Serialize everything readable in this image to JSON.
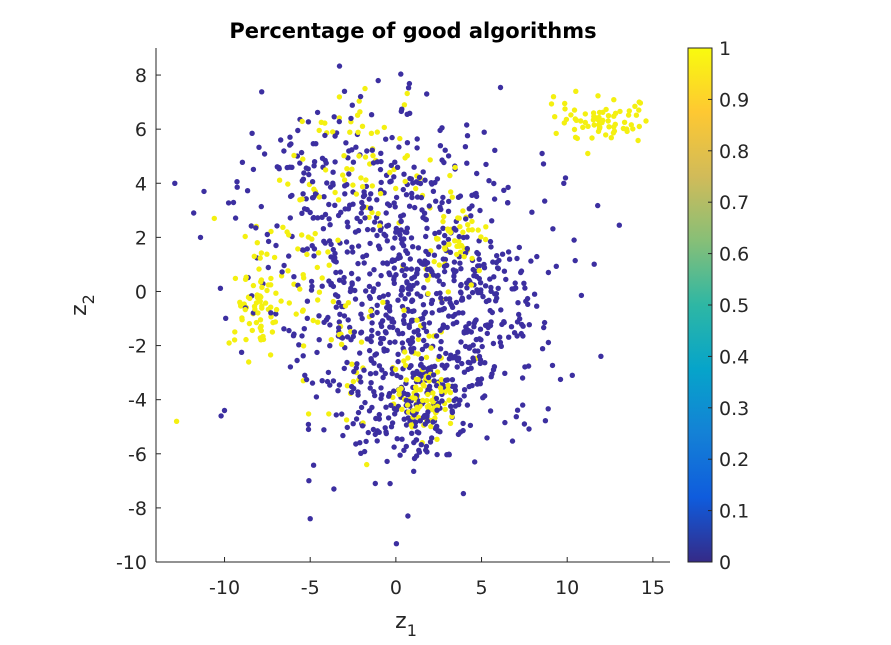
{
  "chart_data": {
    "type": "scatter",
    "title": "Percentage of good algorithms",
    "xlabel": {
      "main": "z",
      "sub": "1"
    },
    "ylabel": {
      "main": "z",
      "sub": "2"
    },
    "xlim": [
      -14,
      16
    ],
    "ylim": [
      -10,
      9
    ],
    "xticks": [
      -10,
      -5,
      0,
      5,
      10,
      15
    ],
    "xtick_labels": [
      "-10",
      "-5",
      "0",
      "5",
      "10",
      "15"
    ],
    "yticks": [
      -10,
      -8,
      -6,
      -4,
      -2,
      0,
      2,
      4,
      6,
      8
    ],
    "ytick_labels": [
      "-10",
      "-8",
      "-6",
      "-4",
      "-2",
      "0",
      "2",
      "4",
      "6",
      "8"
    ],
    "grid": false,
    "colorbar": {
      "colormap": "parula",
      "range": [
        0,
        1
      ],
      "ticks": [
        0,
        0.1,
        0.2,
        0.3,
        0.4,
        0.5,
        0.6,
        0.7,
        0.8,
        0.9,
        1
      ],
      "tick_labels": [
        "0",
        "0.1",
        "0.2",
        "0.3",
        "0.4",
        "0.5",
        "0.6",
        "0.7",
        "0.8",
        "0.9",
        "1"
      ],
      "stops": [
        "#352a87",
        "#0f5cdd",
        "#1481d6",
        "#06a4ca",
        "#2eb7a4",
        "#87bf77",
        "#d1bb59",
        "#fec832",
        "#f9fb0e"
      ],
      "low_color": "#3c2fa0",
      "high_color": "#f4f010"
    },
    "clusters": [
      {
        "value": 0,
        "count": 780,
        "cx": 0.8,
        "cy": 0.2,
        "sx": 3.8,
        "sy": 2.9
      },
      {
        "value": 0,
        "count": 140,
        "cx": 1.2,
        "cy": -4.3,
        "sx": 1.6,
        "sy": 1.0
      },
      {
        "value": 0,
        "count": 90,
        "cx": -4.5,
        "cy": 4.2,
        "sx": 2.6,
        "sy": 1.3
      },
      {
        "value": 0,
        "count": 70,
        "cx": 5.5,
        "cy": -0.5,
        "sx": 1.5,
        "sy": 1.6
      },
      {
        "value": 1,
        "count": 80,
        "cx": 1.6,
        "cy": -4.0,
        "sx": 0.8,
        "sy": 0.7
      },
      {
        "value": 1,
        "count": 70,
        "cx": -8.0,
        "cy": -0.2,
        "sx": 0.7,
        "sy": 1.0
      },
      {
        "value": 1,
        "count": 65,
        "cx": 12.0,
        "cy": 6.3,
        "sx": 1.5,
        "sy": 0.4
      },
      {
        "value": 1,
        "count": 50,
        "cx": 3.5,
        "cy": 1.8,
        "sx": 0.9,
        "sy": 0.6
      },
      {
        "value": 1,
        "count": 45,
        "cx": -1.0,
        "cy": 4.0,
        "sx": 2.5,
        "sy": 1.0
      },
      {
        "value": 1,
        "count": 35,
        "cx": -5.5,
        "cy": 1.5,
        "sx": 1.2,
        "sy": 1.5
      },
      {
        "value": 1,
        "count": 30,
        "cx": -3.0,
        "cy": -2.0,
        "sx": 1.5,
        "sy": 1.2
      },
      {
        "value": 1,
        "count": 25,
        "cx": 2.0,
        "cy": -1.5,
        "sx": 1.0,
        "sy": 1.2
      },
      {
        "value": 1,
        "count": 20,
        "cx": -2.5,
        "cy": 6.0,
        "sx": 1.5,
        "sy": 0.6
      }
    ],
    "points": [
      {
        "x": -12.8,
        "y": -4.8,
        "value": 1
      },
      {
        "x": -12.9,
        "y": 4.0,
        "value": 0
      },
      {
        "x": -11.8,
        "y": 2.9,
        "value": 0
      },
      {
        "x": -11.2,
        "y": 3.7,
        "value": 0
      },
      {
        "x": -10.6,
        "y": 2.7,
        "value": 1
      },
      {
        "x": -11.4,
        "y": 2.0,
        "value": 0
      },
      {
        "x": -10.2,
        "y": -4.6,
        "value": 0
      },
      {
        "x": -10.0,
        "y": -4.4,
        "value": 0
      },
      {
        "x": -5.0,
        "y": -8.4,
        "value": 0
      },
      {
        "x": 0.7,
        "y": -8.3,
        "value": 0
      },
      {
        "x": -1.2,
        "y": -7.1,
        "value": 0
      },
      {
        "x": 1.8,
        "y": 7.3,
        "value": 0
      },
      {
        "x": -1.8,
        "y": 7.5,
        "value": 1
      },
      {
        "x": -3.0,
        "y": 7.4,
        "value": 0
      },
      {
        "x": 0.5,
        "y": 6.9,
        "value": 1
      },
      {
        "x": 9.9,
        "y": 4.2,
        "value": 0
      },
      {
        "x": 9.8,
        "y": 4.0,
        "value": 0
      },
      {
        "x": 10.3,
        "y": -3.1,
        "value": 0
      },
      {
        "x": 10.4,
        "y": 1.9,
        "value": 0
      },
      {
        "x": 11.2,
        "y": 5.1,
        "value": 1
      },
      {
        "x": 14.6,
        "y": 6.3,
        "value": 1
      },
      {
        "x": 14.2,
        "y": 7.0,
        "value": 1
      },
      {
        "x": 9.2,
        "y": 7.2,
        "value": 1
      },
      {
        "x": 10.5,
        "y": 7.4,
        "value": 1
      },
      {
        "x": -1.7,
        "y": -6.4,
        "value": 1
      },
      {
        "x": 4.6,
        "y": -6.3,
        "value": 0
      },
      {
        "x": 7.5,
        "y": -4.9,
        "value": 0
      },
      {
        "x": -5.1,
        "y": -5.1,
        "value": 0
      },
      {
        "x": 8.1,
        "y": -0.1,
        "value": 0
      },
      {
        "x": 8.9,
        "y": 0.7,
        "value": 0
      }
    ]
  }
}
